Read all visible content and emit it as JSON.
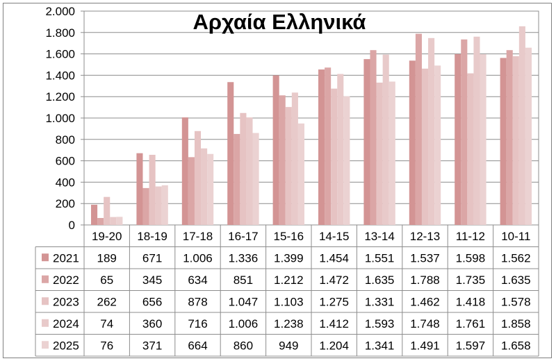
{
  "chart_data": {
    "type": "bar",
    "title": "Αρχαία Ελληνικά",
    "xlabel": "",
    "ylabel": "",
    "ylim": [
      0,
      2000
    ],
    "yticks": [
      0,
      200,
      400,
      600,
      800,
      1000,
      1200,
      1400,
      1600,
      1800,
      2000
    ],
    "ytick_labels": [
      "0",
      "200",
      "400",
      "600",
      "800",
      "1.000",
      "1.200",
      "1.400",
      "1.600",
      "1.800",
      "2.000"
    ],
    "grid": true,
    "legend": "data-table",
    "categories": [
      "19-20",
      "18-19",
      "17-18",
      "16-17",
      "15-16",
      "14-15",
      "13-14",
      "12-13",
      "11-12",
      "10-11"
    ],
    "series": [
      {
        "name": "2021",
        "color": "#d39494",
        "values": [
          189,
          671,
          1006,
          1336,
          1399,
          1454,
          1551,
          1537,
          1598,
          1562
        ],
        "labels": [
          "189",
          "671",
          "1.006",
          "1.336",
          "1.399",
          "1.454",
          "1.551",
          "1.537",
          "1.598",
          "1.562"
        ]
      },
      {
        "name": "2022",
        "color": "#dba6a6",
        "values": [
          65,
          345,
          634,
          851,
          1212,
          1472,
          1635,
          1788,
          1735,
          1635
        ],
        "labels": [
          "65",
          "345",
          "634",
          "851",
          "1.212",
          "1.472",
          "1.635",
          "1.788",
          "1.735",
          "1.635"
        ]
      },
      {
        "name": "2023",
        "color": "#e6c3c3",
        "values": [
          262,
          656,
          878,
          1047,
          1103,
          1275,
          1331,
          1462,
          1418,
          1578
        ],
        "labels": [
          "262",
          "656",
          "878",
          "1.047",
          "1.103",
          "1.275",
          "1.331",
          "1.462",
          "1.418",
          "1.578"
        ]
      },
      {
        "name": "2024",
        "color": "#e8caca",
        "values": [
          74,
          360,
          716,
          1006,
          1238,
          1412,
          1593,
          1748,
          1761,
          1858
        ],
        "labels": [
          "74",
          "360",
          "716",
          "1.006",
          "1.238",
          "1.412",
          "1.593",
          "1.748",
          "1.761",
          "1.858"
        ]
      },
      {
        "name": "2025",
        "color": "#ebd2d2",
        "values": [
          76,
          371,
          664,
          860,
          949,
          1204,
          1341,
          1491,
          1597,
          1658
        ],
        "labels": [
          "76",
          "371",
          "664",
          "860",
          "949",
          "1.204",
          "1.341",
          "1.491",
          "1.597",
          "1.658"
        ]
      }
    ]
  }
}
